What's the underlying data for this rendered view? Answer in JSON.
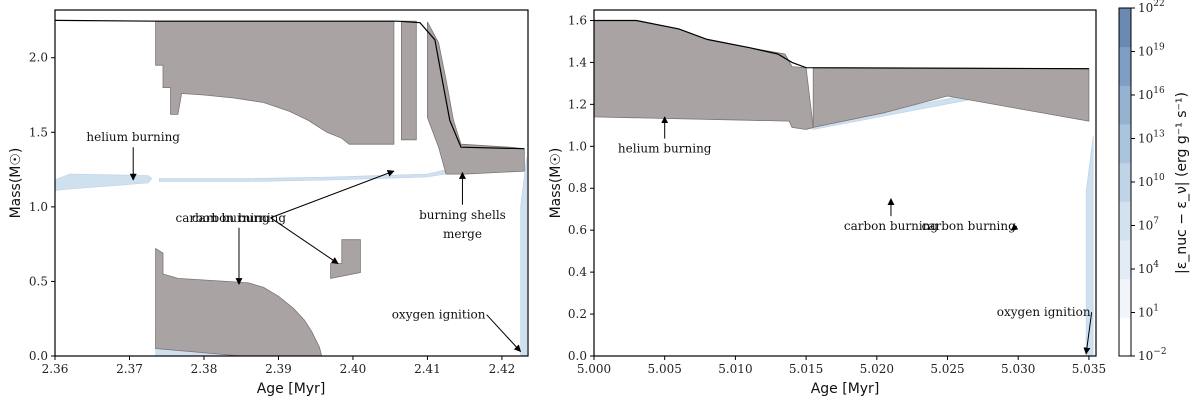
{
  "chart_data": [
    {
      "type": "kippenhahn",
      "xlabel": "Age [Myr]",
      "ylabel": "Mass(M☉)",
      "xlim": [
        2.36,
        2.4235
      ],
      "ylim": [
        0.0,
        2.32
      ],
      "xticks": [
        "2.36",
        "2.37",
        "2.38",
        "2.39",
        "2.40",
        "2.41",
        "2.42"
      ],
      "yticks": [
        "0.0",
        "0.5",
        "1.0",
        "1.5",
        "2.0"
      ],
      "total_mass": [
        [
          2.36,
          2.25
        ],
        [
          2.374,
          2.245
        ],
        [
          2.4,
          2.245
        ],
        [
          2.406,
          2.245
        ],
        [
          2.409,
          2.235
        ],
        [
          2.411,
          2.12
        ],
        [
          2.412,
          1.85
        ],
        [
          2.413,
          1.58
        ],
        [
          2.4145,
          1.4
        ],
        [
          2.423,
          1.39
        ]
      ],
      "convective_regions": [
        [
          [
            2.3735,
            2.245
          ],
          [
            2.4055,
            2.245
          ],
          [
            2.4055,
            1.42
          ],
          [
            2.3995,
            1.42
          ],
          [
            2.3985,
            1.46
          ],
          [
            2.3965,
            1.5
          ],
          [
            2.394,
            1.58
          ],
          [
            2.3915,
            1.64
          ],
          [
            2.388,
            1.7
          ],
          [
            2.384,
            1.73
          ],
          [
            2.38,
            1.75
          ],
          [
            2.377,
            1.76
          ],
          [
            2.3765,
            1.62
          ],
          [
            2.3755,
            1.62
          ],
          [
            2.3755,
            1.8
          ],
          [
            2.3745,
            1.8
          ],
          [
            2.3745,
            1.95
          ],
          [
            2.3735,
            1.95
          ]
        ],
        [
          [
            2.4065,
            2.245
          ],
          [
            2.4085,
            2.245
          ],
          [
            2.4085,
            1.45
          ],
          [
            2.4065,
            1.45
          ]
        ],
        [
          [
            2.41,
            2.24
          ],
          [
            2.4115,
            2.1
          ],
          [
            2.4125,
            1.85
          ],
          [
            2.4135,
            1.58
          ],
          [
            2.4145,
            1.42
          ],
          [
            2.421,
            1.4
          ],
          [
            2.423,
            1.39
          ],
          [
            2.423,
            1.24
          ],
          [
            2.415,
            1.22
          ],
          [
            2.4125,
            1.22
          ],
          [
            2.4115,
            1.4
          ],
          [
            2.41,
            1.6
          ]
        ],
        [
          [
            2.3735,
            0.72
          ],
          [
            2.3745,
            0.69
          ],
          [
            2.3745,
            0.55
          ],
          [
            2.3765,
            0.52
          ],
          [
            2.383,
            0.5
          ],
          [
            2.386,
            0.49
          ],
          [
            2.388,
            0.46
          ],
          [
            2.39,
            0.4
          ],
          [
            2.392,
            0.32
          ],
          [
            2.3935,
            0.24
          ],
          [
            2.3945,
            0.16
          ],
          [
            2.3955,
            0.06
          ],
          [
            2.3958,
            0.0
          ],
          [
            2.385,
            0.0
          ],
          [
            2.3735,
            0.05
          ]
        ],
        [
          [
            2.397,
            0.62
          ],
          [
            2.3985,
            0.62
          ],
          [
            2.3985,
            0.78
          ],
          [
            2.401,
            0.78
          ],
          [
            2.401,
            0.56
          ],
          [
            2.399,
            0.54
          ],
          [
            2.397,
            0.52
          ]
        ]
      ],
      "burning_regions": [
        [
          [
            2.36,
            1.18
          ],
          [
            2.362,
            1.22
          ],
          [
            2.3725,
            1.21
          ],
          [
            2.373,
            1.19
          ],
          [
            2.3725,
            1.16
          ],
          [
            2.362,
            1.12
          ],
          [
            2.36,
            1.11
          ]
        ],
        [
          [
            2.3735,
            0.04
          ],
          [
            2.3735,
            0.16
          ],
          [
            2.38,
            0.1
          ],
          [
            2.39,
            0.06
          ],
          [
            2.3955,
            0.03
          ],
          [
            2.3955,
            0.0
          ],
          [
            2.3735,
            0.0
          ]
        ],
        [
          [
            2.374,
            1.19
          ],
          [
            2.386,
            1.19
          ],
          [
            2.397,
            1.2
          ],
          [
            2.41,
            1.22
          ],
          [
            2.422,
            1.36
          ],
          [
            2.422,
            1.3
          ],
          [
            2.41,
            1.2
          ],
          [
            2.397,
            1.18
          ],
          [
            2.386,
            1.17
          ],
          [
            2.374,
            1.17
          ]
        ],
        [
          [
            2.4225,
            0.0
          ],
          [
            2.4233,
            0.0
          ],
          [
            2.4233,
            1.33
          ],
          [
            2.4225,
            1.0
          ]
        ]
      ],
      "annotations": [
        {
          "text": "helium burning",
          "xy": [
            2.3705,
            1.18
          ],
          "text_xy": [
            2.3705,
            1.44
          ]
        },
        {
          "text": "carbon burning",
          "xy": [
            2.4055,
            1.24
          ],
          "text_xy": [
            2.3825,
            0.9
          ]
        },
        {
          "text": "carbon burning",
          "xy": [
            2.398,
            0.62
          ],
          "text_xy": [
            2.3825,
            0.9
          ]
        },
        {
          "text": "carbon burning",
          "xy": [
            2.3847,
            0.48
          ],
          "text_xy": [
            2.3847,
            0.9
          ]
        },
        {
          "text": "burning shells",
          "xy": [
            2.4147,
            1.23
          ],
          "text_xy": [
            2.4147,
            0.92
          ]
        },
        {
          "text": "merge",
          "xy": null,
          "text_xy": [
            2.4147,
            0.79
          ]
        },
        {
          "text": "oxygen ignition",
          "xy": [
            2.4225,
            0.03
          ],
          "text_xy": [
            2.4115,
            0.25
          ]
        }
      ]
    },
    {
      "type": "kippenhahn",
      "xlabel": "Age [Myr]",
      "ylabel": "Mass(M☉)",
      "xlim": [
        5.0,
        5.0355
      ],
      "ylim": [
        0.0,
        1.65
      ],
      "xticks": [
        "5.000",
        "5.005",
        "5.010",
        "5.015",
        "5.020",
        "5.025",
        "5.030",
        "5.035"
      ],
      "yticks": [
        "0.0",
        "0.2",
        "0.4",
        "0.6",
        "0.8",
        "1.0",
        "1.2",
        "1.4",
        "1.6"
      ],
      "total_mass": [
        [
          5.0,
          1.6
        ],
        [
          5.003,
          1.6
        ],
        [
          5.006,
          1.56
        ],
        [
          5.008,
          1.51
        ],
        [
          5.011,
          1.47
        ],
        [
          5.013,
          1.44
        ],
        [
          5.014,
          1.4
        ],
        [
          5.015,
          1.375
        ],
        [
          5.035,
          1.37
        ]
      ],
      "convective_regions": [
        [
          [
            5.0,
            1.6
          ],
          [
            5.003,
            1.6
          ],
          [
            5.006,
            1.56
          ],
          [
            5.008,
            1.51
          ],
          [
            5.011,
            1.47
          ],
          [
            5.0135,
            1.44
          ],
          [
            5.014,
            1.38
          ],
          [
            5.015,
            1.375
          ],
          [
            5.0155,
            1.09
          ],
          [
            5.015,
            1.08
          ],
          [
            5.014,
            1.09
          ],
          [
            5.0138,
            1.12
          ],
          [
            5.0,
            1.14
          ]
        ],
        [
          [
            5.0155,
            1.375
          ],
          [
            5.035,
            1.37
          ],
          [
            5.035,
            1.12
          ],
          [
            5.03,
            1.18
          ],
          [
            5.025,
            1.24
          ],
          [
            5.0205,
            1.16
          ],
          [
            5.0155,
            1.09
          ]
        ]
      ],
      "burning_regions": [
        [
          [
            5.0,
            1.16
          ],
          [
            5.014,
            1.17
          ],
          [
            5.0155,
            1.1
          ],
          [
            5.035,
            1.36
          ],
          [
            5.035,
            1.33
          ],
          [
            5.0155,
            1.08
          ],
          [
            5.014,
            1.12
          ],
          [
            5.0,
            1.14
          ]
        ],
        [
          [
            5.0348,
            0.0
          ],
          [
            5.0353,
            0.0
          ],
          [
            5.0353,
            1.05
          ],
          [
            5.0348,
            0.78
          ]
        ]
      ],
      "annotations": [
        {
          "text": "helium burning",
          "xy": [
            5.005,
            1.14
          ],
          "text_xy": [
            5.005,
            0.97
          ]
        },
        {
          "text": "carbon burning",
          "xy": [
            5.021,
            0.75
          ],
          "text_xy": [
            5.021,
            0.6
          ]
        },
        {
          "text": "carbon burning",
          "xy": [
            5.0295,
            0.6
          ],
          "text_xy": [
            5.0265,
            0.6
          ]
        },
        {
          "text": "oxygen ignition",
          "xy": [
            5.0348,
            0.01
          ],
          "text_xy": [
            5.0318,
            0.19
          ]
        }
      ]
    }
  ],
  "colorbar": {
    "label": "|ε_nuc − ε_ν| (erg g⁻¹ s⁻¹)",
    "ticks": [
      {
        "base": "10",
        "exp": "22"
      },
      {
        "base": "10",
        "exp": "19"
      },
      {
        "base": "10",
        "exp": "16"
      },
      {
        "base": "10",
        "exp": "13"
      },
      {
        "base": "10",
        "exp": "10"
      },
      {
        "base": "10",
        "exp": "7"
      },
      {
        "base": "10",
        "exp": "4"
      },
      {
        "base": "10",
        "exp": "1"
      },
      {
        "base": "10",
        "exp": "−2"
      }
    ],
    "colors": [
      "#ffffff",
      "#f1f5fa",
      "#e3ecf5",
      "#d3e2ef",
      "#c0d4e7",
      "#abc4dd",
      "#95b3d1",
      "#7e9fc3",
      "#6a8ab2"
    ]
  },
  "style": {
    "convective": "#aaa3a4",
    "convective_edge": "#7c7475",
    "burning": "#cfe0ef",
    "total_mass": "#000000"
  }
}
